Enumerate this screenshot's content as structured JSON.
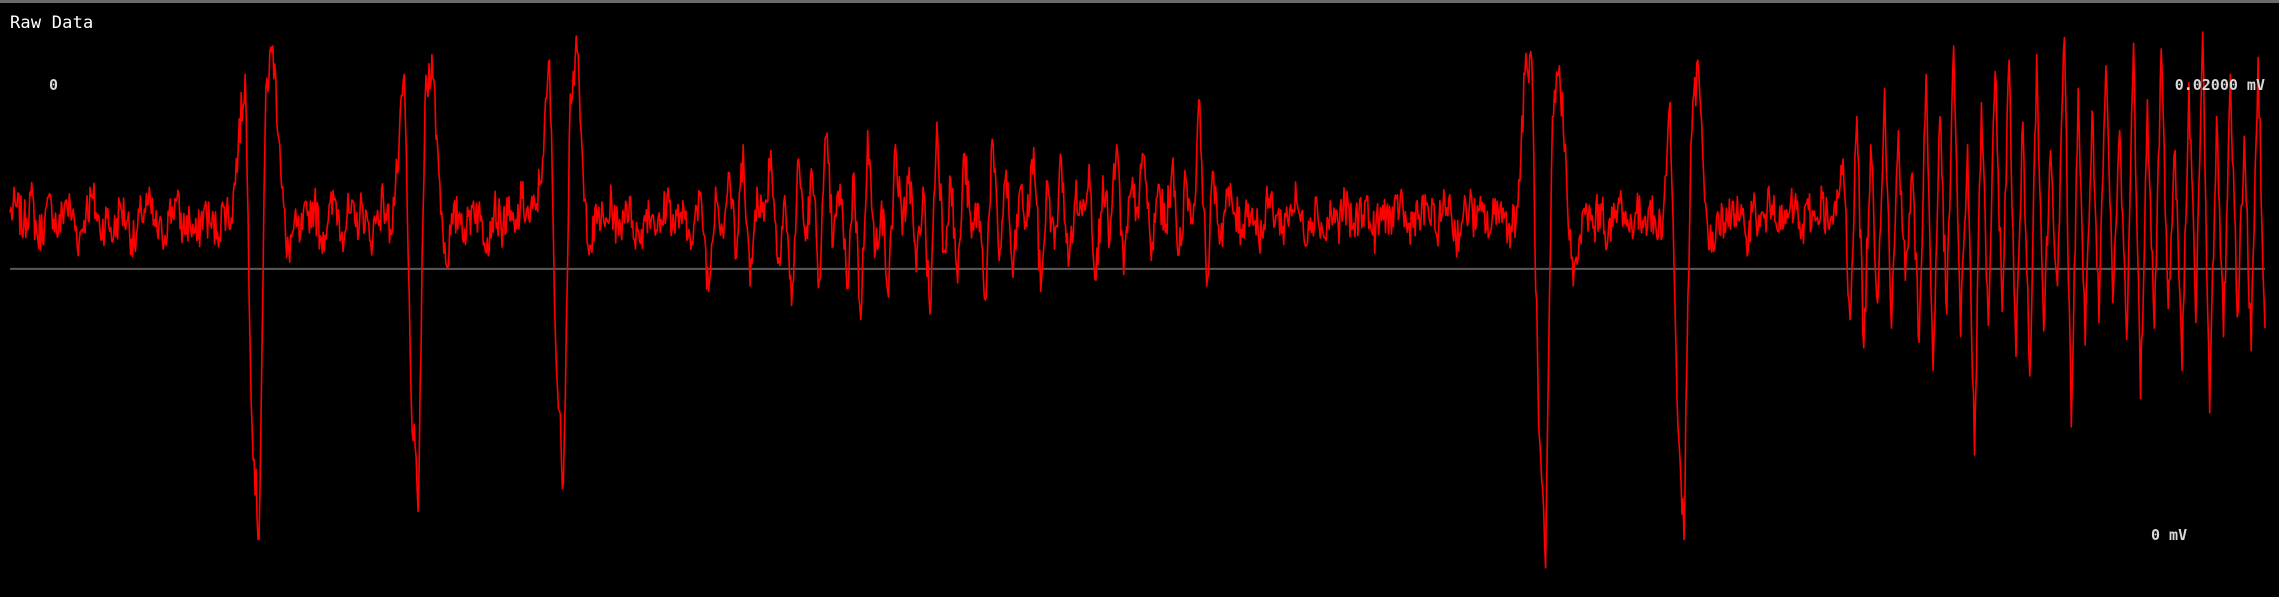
{
  "panel": {
    "title": "Raw Data",
    "channel_label": "0",
    "y_max_label": "0.02000 mV",
    "y_min_label": "0 mV"
  },
  "colors": {
    "background": "#000000",
    "trace": "#ff0000",
    "baseline": "#5a5a5a",
    "top_rule": "#6b6b6b",
    "label_text": "#d8d8d8"
  },
  "chart_data": {
    "type": "line",
    "title": "Raw Data",
    "xlabel": "",
    "ylabel": "",
    "channel": "0",
    "y_unit": "mV",
    "ylim": [
      0,
      0.02
    ],
    "baseline": 0.0116,
    "grid": false,
    "legend": "none",
    "series": [
      {
        "values": [
          0.0136,
          0.0138,
          0.0131,
          0.0142,
          0.0127,
          0.0133,
          0.0139,
          0.0129,
          0.014,
          0.0135,
          0.0126,
          0.0137,
          0.0141,
          0.013,
          0.0134,
          0.0128,
          0.0138,
          0.0133,
          0.0124,
          0.0136,
          0.0139,
          0.0131,
          0.0127,
          0.0135,
          0.014,
          0.013,
          0.0133,
          0.0126,
          0.0137,
          0.0132,
          0.0129,
          0.0138,
          0.0134,
          0.016,
          0.0185,
          0.006,
          0.002,
          0.018,
          0.0195,
          0.016,
          0.012,
          0.013,
          0.0128,
          0.0135,
          0.0139,
          0.0127,
          0.0133,
          0.0141,
          0.0129,
          0.0136,
          0.0131,
          0.0138,
          0.0126,
          0.0134,
          0.014,
          0.013,
          0.015,
          0.0185,
          0.007,
          0.003,
          0.0175,
          0.0192,
          0.015,
          0.0118,
          0.0132,
          0.0136,
          0.0129,
          0.014,
          0.0133,
          0.0127,
          0.0138,
          0.0131,
          0.0135,
          0.0129,
          0.0141,
          0.0134,
          0.0137,
          0.0155,
          0.019,
          0.008,
          0.004,
          0.0178,
          0.0193,
          0.014,
          0.0124,
          0.0136,
          0.0131,
          0.0139,
          0.0128,
          0.014,
          0.0133,
          0.0126,
          0.0137,
          0.0135,
          0.0129,
          0.0142,
          0.0131,
          0.0136,
          0.0127,
          0.0134,
          0.0139,
          0.0108,
          0.0145,
          0.013,
          0.015,
          0.012,
          0.016,
          0.011,
          0.0145,
          0.0133,
          0.0158,
          0.0118,
          0.0142,
          0.0103,
          0.0155,
          0.0126,
          0.0149,
          0.0112,
          0.0163,
          0.0124,
          0.0146,
          0.0109,
          0.015,
          0.0098,
          0.0165,
          0.012,
          0.014,
          0.0106,
          0.016,
          0.0128,
          0.0152,
          0.0115,
          0.0145,
          0.01,
          0.0168,
          0.0122,
          0.0148,
          0.0111,
          0.0157,
          0.0127,
          0.0139,
          0.0105,
          0.0162,
          0.0119,
          0.0151,
          0.0113,
          0.0144,
          0.0131,
          0.0159,
          0.0108,
          0.0147,
          0.0123,
          0.0155,
          0.0117,
          0.0141,
          0.0135,
          0.0153,
          0.0112,
          0.0149,
          0.0126,
          0.016,
          0.0114,
          0.0143,
          0.0138,
          0.0156,
          0.0119,
          0.0146,
          0.0129,
          0.0152,
          0.0121,
          0.0148,
          0.0132,
          0.0175,
          0.011,
          0.015,
          0.0127,
          0.0142,
          0.0136,
          0.013,
          0.0139,
          0.0133,
          0.0128,
          0.0141,
          0.0135,
          0.0131,
          0.0137,
          0.014,
          0.0129,
          0.0134,
          0.0138,
          0.0127,
          0.0136,
          0.0132,
          0.0139,
          0.013,
          0.0135,
          0.014,
          0.0128,
          0.0133,
          0.0137,
          0.0131,
          0.0142,
          0.0129,
          0.0136,
          0.0134,
          0.0138,
          0.013,
          0.0135,
          0.0141,
          0.0127,
          0.0133,
          0.0139,
          0.0132,
          0.0136,
          0.0129,
          0.014,
          0.0134,
          0.0131,
          0.0138,
          0.0185,
          0.019,
          0.006,
          0.001,
          0.017,
          0.0188,
          0.015,
          0.011,
          0.0128,
          0.0136,
          0.0131,
          0.0139,
          0.0127,
          0.0134,
          0.014,
          0.013,
          0.0136,
          0.0133,
          0.0138,
          0.0129,
          0.0135,
          0.0175,
          0.007,
          0.002,
          0.016,
          0.019,
          0.014,
          0.0122,
          0.0135,
          0.0129,
          0.014,
          0.0133,
          0.0127,
          0.0138,
          0.0131,
          0.0136,
          0.0142,
          0.013,
          0.0134,
          0.0139,
          0.0128,
          0.0137,
          0.0133,
          0.0141,
          0.013,
          0.0135,
          0.0155,
          0.0098,
          0.017,
          0.0088,
          0.016,
          0.0104,
          0.018,
          0.0095,
          0.0165,
          0.0112,
          0.015,
          0.009,
          0.0185,
          0.008,
          0.017,
          0.01,
          0.0195,
          0.0092,
          0.016,
          0.005,
          0.0175,
          0.0096,
          0.0186,
          0.0101,
          0.019,
          0.0085,
          0.0168,
          0.0078,
          0.0192,
          0.0094,
          0.0158,
          0.011,
          0.0198,
          0.006,
          0.018,
          0.0089,
          0.0172,
          0.0097,
          0.0188,
          0.0104,
          0.0165,
          0.0091,
          0.0196,
          0.007,
          0.0176,
          0.0095,
          0.0194,
          0.0102,
          0.0158,
          0.008,
          0.0182,
          0.0097,
          0.02,
          0.0065,
          0.017,
          0.0092,
          0.0185,
          0.0099,
          0.0163,
          0.0087,
          0.0191,
          0.0095
        ]
      }
    ]
  }
}
